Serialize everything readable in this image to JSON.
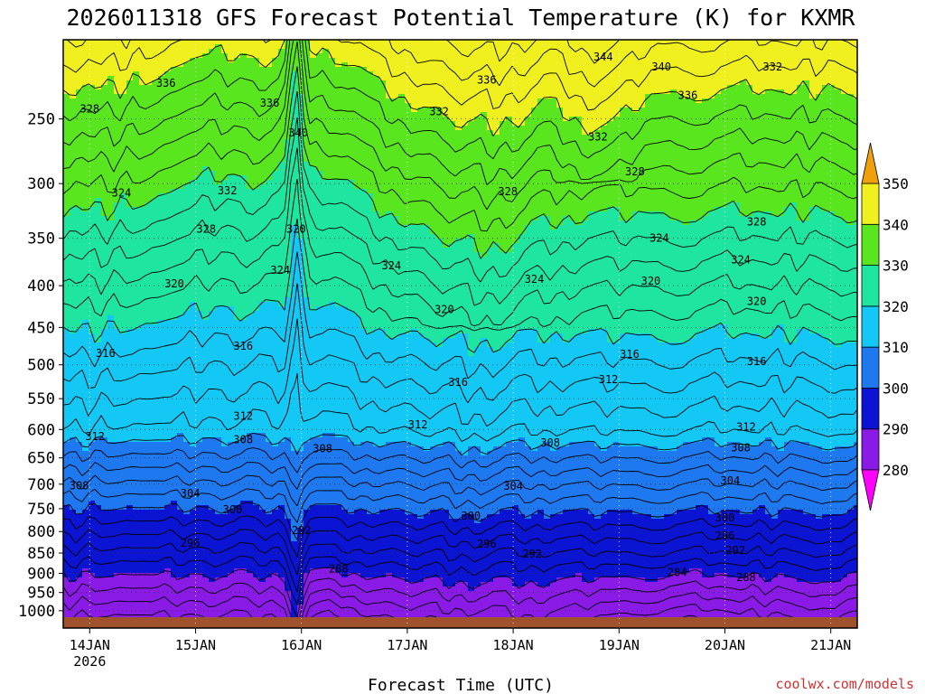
{
  "chart_data": {
    "type": "heatmap",
    "title": "2026011318 GFS Forecast Potential Temperature (K) for KXMR",
    "xlabel": "Forecast Time (UTC)",
    "ylabel": "",
    "x_ticks": [
      {
        "label": "14JAN",
        "sublabel": "2026",
        "day": 14
      },
      {
        "label": "15JAN",
        "day": 15
      },
      {
        "label": "16JAN",
        "day": 16
      },
      {
        "label": "17JAN",
        "day": 17
      },
      {
        "label": "18JAN",
        "day": 18
      },
      {
        "label": "19JAN",
        "day": 19
      },
      {
        "label": "20JAN",
        "day": 20
      },
      {
        "label": "21JAN",
        "day": 21
      }
    ],
    "xlim_day": [
      13.75,
      21.25
    ],
    "y_axis": {
      "type": "pressure-log",
      "range_hpa": [
        1050,
        200
      ],
      "ticks": [
        250,
        300,
        350,
        400,
        450,
        500,
        550,
        600,
        650,
        700,
        750,
        800,
        850,
        900,
        950,
        1000
      ]
    },
    "colorbar": {
      "ticks": [
        280,
        290,
        300,
        310,
        320,
        330,
        340,
        350
      ],
      "bins": [
        {
          "min": 270,
          "max": 280,
          "color": "#ff00ff"
        },
        {
          "min": 280,
          "max": 290,
          "color": "#8a1ae6"
        },
        {
          "min": 290,
          "max": 300,
          "color": "#0a14d2"
        },
        {
          "min": 300,
          "max": 310,
          "color": "#1e78f0"
        },
        {
          "min": 310,
          "max": 320,
          "color": "#14c8f5"
        },
        {
          "min": 320,
          "max": 330,
          "color": "#1ee6a0"
        },
        {
          "min": 330,
          "max": 340,
          "color": "#5ae61e"
        },
        {
          "min": 340,
          "max": 350,
          "color": "#f0f01e"
        },
        {
          "min": 350,
          "max": 360,
          "color": "#f0a00a"
        }
      ]
    },
    "contour_labels": [
      {
        "value": "336",
        "day": 14.72,
        "p": 226
      },
      {
        "value": "328",
        "day": 14.0,
        "p": 243
      },
      {
        "value": "336",
        "day": 15.7,
        "p": 239
      },
      {
        "value": "340",
        "day": 15.97,
        "p": 260
      },
      {
        "value": "324",
        "day": 14.3,
        "p": 308
      },
      {
        "value": "332",
        "day": 15.3,
        "p": 306
      },
      {
        "value": "328",
        "day": 15.1,
        "p": 341
      },
      {
        "value": "320",
        "day": 15.95,
        "p": 341
      },
      {
        "value": "324",
        "day": 15.8,
        "p": 383
      },
      {
        "value": "320",
        "day": 14.8,
        "p": 398
      },
      {
        "value": "324",
        "day": 16.85,
        "p": 378
      },
      {
        "value": "336",
        "day": 17.75,
        "p": 224
      },
      {
        "value": "332",
        "day": 17.3,
        "p": 245
      },
      {
        "value": "328",
        "day": 17.95,
        "p": 307
      },
      {
        "value": "324",
        "day": 18.2,
        "p": 393
      },
      {
        "value": "320",
        "day": 17.35,
        "p": 428
      },
      {
        "value": "344",
        "day": 18.85,
        "p": 210
      },
      {
        "value": "340",
        "day": 19.4,
        "p": 216
      },
      {
        "value": "336",
        "day": 19.65,
        "p": 234
      },
      {
        "value": "332",
        "day": 18.8,
        "p": 263
      },
      {
        "value": "332",
        "day": 20.45,
        "p": 216
      },
      {
        "value": "328",
        "day": 19.15,
        "p": 290
      },
      {
        "value": "324",
        "day": 19.38,
        "p": 350
      },
      {
        "value": "328",
        "day": 20.3,
        "p": 334
      },
      {
        "value": "324",
        "day": 20.15,
        "p": 372
      },
      {
        "value": "320",
        "day": 19.3,
        "p": 395
      },
      {
        "value": "320",
        "day": 20.3,
        "p": 418
      },
      {
        "value": "316",
        "day": 14.15,
        "p": 484
      },
      {
        "value": "316",
        "day": 15.45,
        "p": 474
      },
      {
        "value": "316",
        "day": 17.48,
        "p": 525
      },
      {
        "value": "316",
        "day": 19.1,
        "p": 485
      },
      {
        "value": "316",
        "day": 20.3,
        "p": 495
      },
      {
        "value": "312",
        "day": 18.9,
        "p": 521
      },
      {
        "value": "312",
        "day": 17.1,
        "p": 592
      },
      {
        "value": "312",
        "day": 15.45,
        "p": 578
      },
      {
        "value": "312",
        "day": 14.05,
        "p": 612
      },
      {
        "value": "312",
        "day": 20.2,
        "p": 596
      },
      {
        "value": "308",
        "day": 15.45,
        "p": 617
      },
      {
        "value": "308",
        "day": 16.2,
        "p": 633
      },
      {
        "value": "308",
        "day": 18.35,
        "p": 623
      },
      {
        "value": "308",
        "day": 20.15,
        "p": 632
      },
      {
        "value": "308",
        "day": 13.9,
        "p": 703
      },
      {
        "value": "304",
        "day": 14.95,
        "p": 718
      },
      {
        "value": "304",
        "day": 18.0,
        "p": 704
      },
      {
        "value": "304",
        "day": 20.05,
        "p": 693
      },
      {
        "value": "300",
        "day": 15.35,
        "p": 752
      },
      {
        "value": "300",
        "day": 17.6,
        "p": 766
      },
      {
        "value": "300",
        "day": 20.0,
        "p": 770
      },
      {
        "value": "296",
        "day": 14.95,
        "p": 826
      },
      {
        "value": "296",
        "day": 17.75,
        "p": 829
      },
      {
        "value": "296",
        "day": 20.0,
        "p": 810
      },
      {
        "value": "292",
        "day": 16.0,
        "p": 797
      },
      {
        "value": "292",
        "day": 18.18,
        "p": 852
      },
      {
        "value": "292",
        "day": 20.1,
        "p": 843
      },
      {
        "value": "288",
        "day": 16.35,
        "p": 889
      },
      {
        "value": "288",
        "day": 20.2,
        "p": 910
      },
      {
        "value": "284",
        "day": 19.55,
        "p": 898
      }
    ],
    "credit": "coolwx.com/models"
  }
}
